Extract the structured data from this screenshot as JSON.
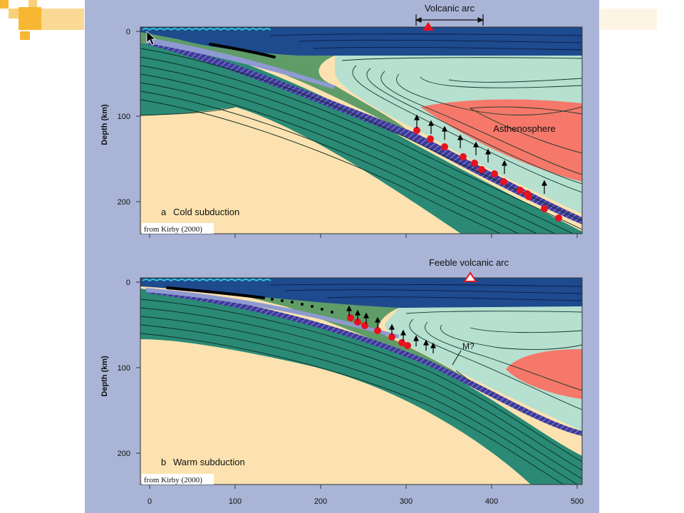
{
  "panel_a": {
    "letter": "a",
    "title": "Cold subduction",
    "credit": "from Kirby (2000)",
    "arc_label": "Volcanic arc",
    "mantle_label": "Asthenosphere",
    "y_axis_label": "Depth (km)",
    "y_ticks": [
      "0",
      "100",
      "200"
    ]
  },
  "panel_b": {
    "letter": "b",
    "title": "Warm subduction",
    "credit": "from Kirby (2000)",
    "arc_label": "Feeble volcanic arc",
    "marker_label": "M?",
    "y_axis_label": "Depth (km)",
    "y_ticks": [
      "0",
      "100",
      "200"
    ]
  },
  "x_ticks": [
    "0",
    "100",
    "200",
    "300",
    "400",
    "500"
  ],
  "colors": {
    "slide_background": "#ffffff",
    "panel_background": "#a9b4d6",
    "ocean": "#1e4a8e",
    "lithosphere": "#2a8a75",
    "mantle_green": "#5f9c68",
    "wedge_light": "#b6e0d0",
    "asthenosphere": "#f5786a",
    "deep_mantle": "#fbe2b0",
    "slab_crust": "#3d3a99",
    "earthquake": "#e8121e",
    "volcano": "#e8121e"
  }
}
